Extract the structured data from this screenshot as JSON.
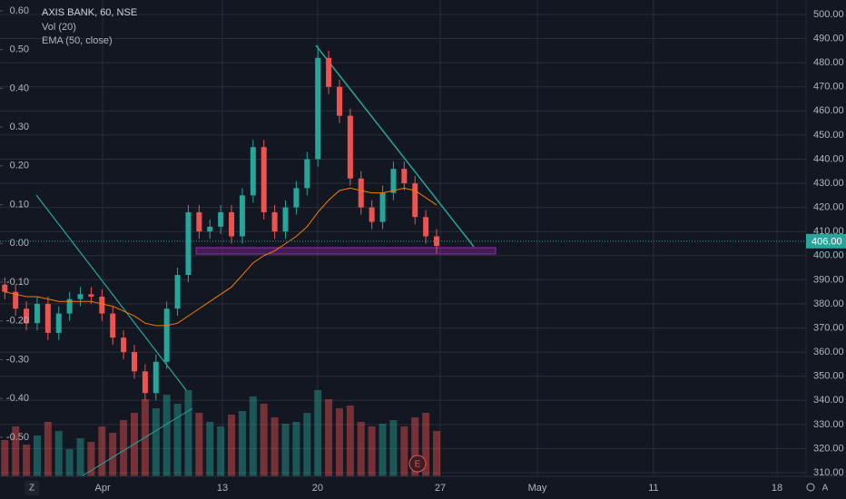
{
  "chart_data": {
    "type": "candlestick",
    "title": "AXIS BANK, 60, NSE",
    "indicators": [
      "Vol (20)",
      "EMA (50, close)"
    ],
    "up_color": "#26a69a",
    "down_color": "#ef5350",
    "ema_color": "#f57c00",
    "grid": true,
    "x": [
      0.2,
      0.65,
      1.1,
      1.55,
      2.0,
      2.45,
      2.9,
      3.35,
      3.8,
      4.25,
      4.7,
      5.15,
      5.6,
      6.05,
      6.5,
      6.95,
      7.4,
      7.85,
      8.3,
      8.75,
      9.2,
      9.65,
      10.1,
      10.55,
      11.0,
      11.45,
      11.9,
      12.35,
      12.8,
      13.25,
      13.7,
      14.15,
      14.6,
      15.05,
      15.5,
      15.95,
      16.4,
      16.85,
      17.3,
      17.75,
      18.2
    ],
    "open": [
      388,
      385,
      378,
      372,
      380,
      368,
      376,
      382,
      384,
      383,
      376,
      366,
      360,
      352,
      343,
      356,
      378,
      392,
      418,
      410,
      412,
      418,
      408,
      425,
      445,
      418,
      410,
      420,
      428,
      440,
      482,
      470,
      458,
      432,
      420,
      414,
      426,
      436,
      430,
      416,
      408
    ],
    "high": [
      391,
      388,
      381,
      383,
      383,
      379,
      385,
      387,
      387,
      386,
      379,
      369,
      363,
      355,
      359,
      381,
      395,
      421,
      421,
      415,
      421,
      421,
      428,
      448,
      448,
      421,
      423,
      431,
      443,
      487,
      485,
      473,
      461,
      435,
      423,
      429,
      439,
      439,
      433,
      419,
      411
    ],
    "low": [
      382,
      375,
      369,
      369,
      365,
      365,
      373,
      379,
      380,
      373,
      363,
      357,
      349,
      340,
      340,
      353,
      375,
      389,
      407,
      407,
      409,
      405,
      405,
      422,
      415,
      407,
      407,
      417,
      425,
      437,
      467,
      455,
      429,
      417,
      411,
      411,
      423,
      427,
      413,
      405,
      401
    ],
    "close": [
      385,
      378,
      372,
      380,
      368,
      376,
      382,
      384,
      383,
      376,
      366,
      360,
      352,
      343,
      356,
      378,
      392,
      418,
      410,
      412,
      418,
      408,
      425,
      445,
      418,
      410,
      420,
      428,
      440,
      482,
      470,
      458,
      432,
      420,
      414,
      426,
      436,
      430,
      416,
      408,
      404
    ],
    "volume": [
      40,
      55,
      35,
      45,
      60,
      50,
      30,
      42,
      38,
      55,
      48,
      62,
      70,
      85,
      75,
      90,
      80,
      95,
      70,
      60,
      55,
      68,
      72,
      88,
      80,
      65,
      58,
      60,
      70,
      95,
      85,
      75,
      78,
      60,
      55,
      58,
      62,
      55,
      65,
      70,
      50
    ],
    "ema": [
      385,
      384,
      383,
      383,
      382,
      381,
      381,
      381,
      381,
      380,
      379,
      377,
      375,
      372,
      371,
      371,
      372,
      375,
      378,
      381,
      384,
      387,
      392,
      397,
      400,
      402,
      405,
      408,
      412,
      418,
      423,
      427,
      428,
      427,
      426,
      426,
      427,
      428,
      427,
      424,
      421
    ],
    "xlim": [
      0,
      33.6
    ],
    "xticks": [
      {
        "value": 4.28,
        "label": "Apr"
      },
      {
        "value": 9.27,
        "label": "13"
      },
      {
        "value": 13.24,
        "label": "20"
      },
      {
        "value": 18.35,
        "label": "27"
      },
      {
        "value": 22.4,
        "label": "May"
      },
      {
        "value": 27.24,
        "label": "11"
      },
      {
        "value": 32.39,
        "label": "18"
      }
    ],
    "ylim": [
      308.5,
      506
    ],
    "yticks": [
      {
        "value": 310,
        "label": "310.00"
      },
      {
        "value": 320,
        "label": "320.00"
      },
      {
        "value": 330,
        "label": "330.00"
      },
      {
        "value": 340,
        "label": "340.00"
      },
      {
        "value": 350,
        "label": "350.00"
      },
      {
        "value": 360,
        "label": "360.00"
      },
      {
        "value": 370,
        "label": "370.00"
      },
      {
        "value": 380,
        "label": "380.00"
      },
      {
        "value": 390,
        "label": "390.00"
      },
      {
        "value": 400,
        "label": "400.00"
      },
      {
        "value": 410,
        "label": "410.00"
      },
      {
        "value": 420,
        "label": "420.00"
      },
      {
        "value": 430,
        "label": "430.00"
      },
      {
        "value": 440,
        "label": "440.00"
      },
      {
        "value": 450,
        "label": "450.00"
      },
      {
        "value": 460,
        "label": "460.00"
      },
      {
        "value": 470,
        "label": "470.00"
      },
      {
        "value": 480,
        "label": "480.00"
      },
      {
        "value": 490,
        "label": "490.00"
      },
      {
        "value": 500,
        "label": "500.00"
      }
    ],
    "y2lim": [
      -0.601,
      0.628
    ],
    "y2ticks": [
      {
        "value": -0.5,
        "label": "-0.50"
      },
      {
        "value": -0.4,
        "label": "-0.40"
      },
      {
        "value": -0.3,
        "label": "-0.30"
      },
      {
        "value": -0.2,
        "label": "-0.20"
      },
      {
        "value": -0.1,
        "label": "-0.10"
      },
      {
        "value": 0,
        "label": "0.00"
      },
      {
        "value": 0.1,
        "label": "0.10"
      },
      {
        "value": 0.2,
        "label": "0.20"
      },
      {
        "value": 0.3,
        "label": "0.30"
      },
      {
        "value": 0.4,
        "label": "0.40"
      },
      {
        "value": 0.5,
        "label": "0.50"
      },
      {
        "value": 0.6,
        "label": "0.60"
      }
    ],
    "last_price": {
      "value": 406,
      "label": "406.00"
    },
    "event_marker": "E",
    "buttons": [
      "Z",
      "A"
    ]
  }
}
